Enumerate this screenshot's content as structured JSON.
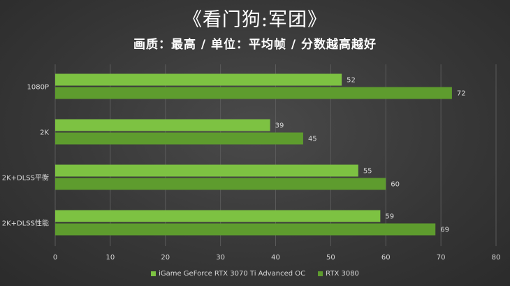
{
  "chart_data": {
    "type": "bar",
    "orientation": "horizontal",
    "title": "《看门狗:军团》",
    "subtitle": "画质：最高 / 单位：平均帧 / 分数越高越好",
    "categories": [
      "1080P",
      "2K",
      "2K+DLSS平衡",
      "2K+DLSS性能"
    ],
    "series": [
      {
        "name": "iGame GeForce RTX 3070 Ti Advanced OC",
        "values": [
          52,
          39,
          55,
          59
        ],
        "color": "#7dc242"
      },
      {
        "name": "RTX 3080",
        "values": [
          72,
          45,
          60,
          69
        ],
        "color": "#5e9c2e"
      }
    ],
    "xlim": [
      0,
      80
    ],
    "xticks": [
      "0",
      "10",
      "20",
      "30",
      "40",
      "50",
      "60",
      "70",
      "80"
    ],
    "grid": true,
    "legend_position": "bottom"
  }
}
